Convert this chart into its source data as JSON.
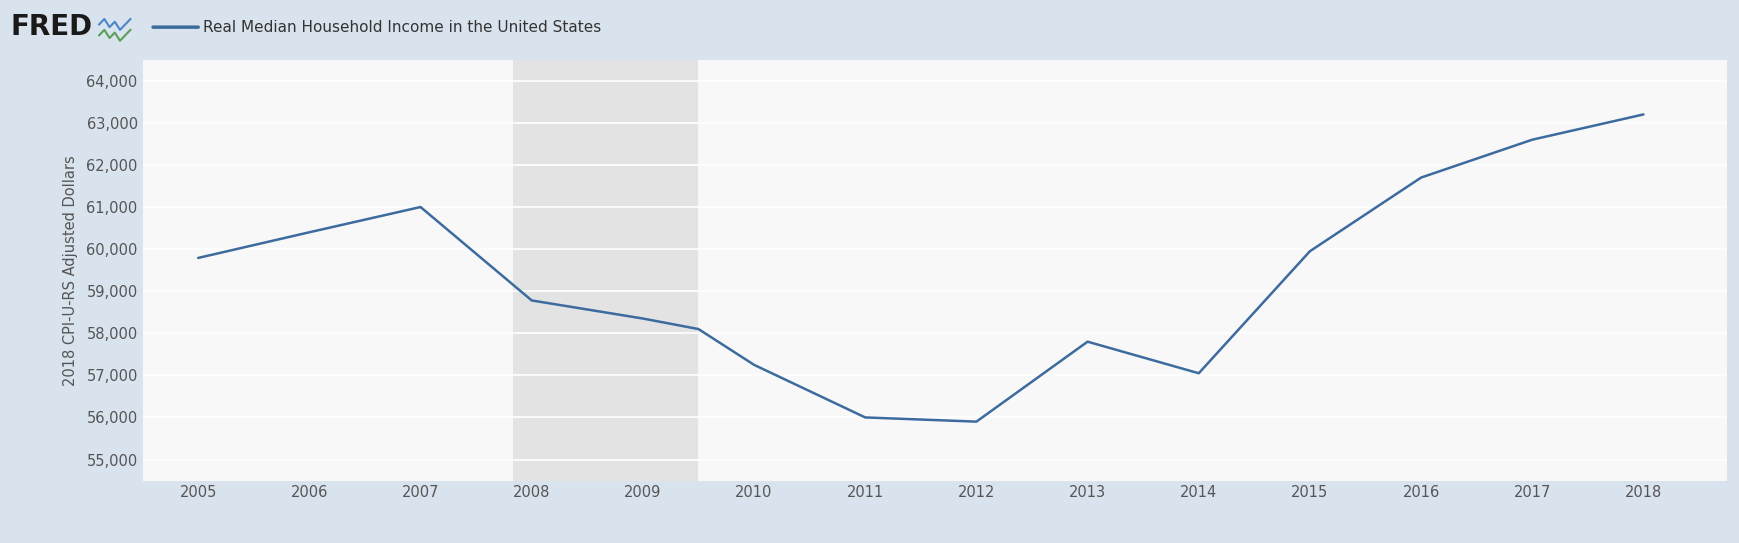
{
  "title": "Real Median Household Income in the United States",
  "ylabel": "2018 CPI-U-RS Adjusted Dollars",
  "line_color": "#3d6b9e",
  "background_outer": "#d9e3ed",
  "background_plot": "#f8f8f8",
  "recession_color": "#e3e3e3",
  "recession_start": 2007.83,
  "recession_end": 2009.5,
  "grid_color": "#d8d8d8",
  "ylim": [
    54500,
    64500
  ],
  "yticks": [
    55000,
    56000,
    57000,
    58000,
    59000,
    60000,
    61000,
    62000,
    63000,
    64000
  ],
  "xlim": [
    2004.5,
    2018.75
  ],
  "xticks": [
    2005,
    2006,
    2007,
    2008,
    2009,
    2010,
    2011,
    2012,
    2013,
    2014,
    2015,
    2016,
    2017,
    2018
  ],
  "years": [
    2005,
    2006,
    2007,
    2008,
    2009,
    2009.5,
    2010,
    2011,
    2012,
    2013,
    2014,
    2015,
    2016,
    2017,
    2018
  ],
  "values": [
    59790,
    60400,
    61000,
    58780,
    58350,
    58100,
    57250,
    56000,
    55900,
    57800,
    57050,
    59950,
    61700,
    62600,
    63200
  ],
  "line_width": 1.8,
  "fred_color": "#1a1a1a",
  "legend_line_color": "#3d6b9e",
  "header_bg": "#d9e3ed",
  "tick_color": "#555555",
  "bottom_bg": "#d9e3ed"
}
